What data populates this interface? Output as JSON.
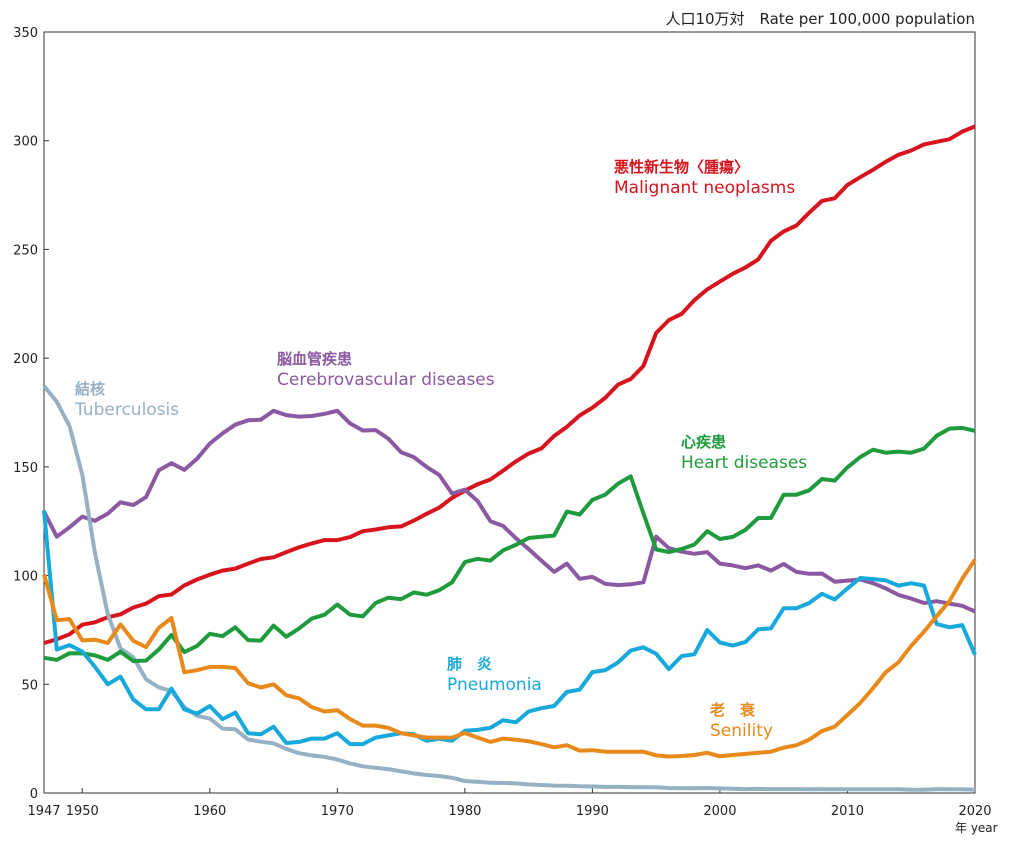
{
  "chart_data": {
    "type": "line",
    "y_label": "人口10万対　Rate per 100,000 population",
    "x_label": "年 year",
    "xlim": [
      1947,
      2020
    ],
    "xticks": [
      1947,
      1950,
      1960,
      1970,
      1980,
      1990,
      2000,
      2010,
      2020
    ],
    "ylim": [
      0,
      350
    ],
    "yticks": [
      0,
      50,
      100,
      150,
      200,
      250,
      300,
      350
    ],
    "x": [
      1947,
      1948,
      1949,
      1950,
      1951,
      1952,
      1953,
      1954,
      1955,
      1956,
      1957,
      1958,
      1959,
      1960,
      1961,
      1962,
      1963,
      1964,
      1965,
      1966,
      1967,
      1968,
      1969,
      1970,
      1971,
      1972,
      1973,
      1974,
      1975,
      1976,
      1977,
      1978,
      1979,
      1980,
      1981,
      1982,
      1983,
      1984,
      1985,
      1986,
      1987,
      1988,
      1989,
      1990,
      1991,
      1992,
      1993,
      1994,
      1995,
      1996,
      1997,
      1998,
      1999,
      2000,
      2001,
      2002,
      2003,
      2004,
      2005,
      2006,
      2007,
      2008,
      2009,
      2010,
      2011,
      2012,
      2013,
      2014,
      2015,
      2016,
      2017,
      2018,
      2019,
      2020
    ],
    "series": [
      {
        "name": "Malignant neoplasms",
        "name_ja": "悪性新生物〈腫瘍〉",
        "color": "#d7141e",
        "values": [
          69.0,
          70.7,
          73.0,
          77.4,
          78.5,
          80.8,
          82.2,
          85.3,
          87.1,
          90.5,
          91.3,
          95.5,
          98.2,
          100.4,
          102.3,
          103.2,
          105.5,
          107.6,
          108.4,
          110.8,
          113.0,
          114.8,
          116.3,
          116.3,
          117.7,
          120.4,
          121.2,
          122.2,
          122.6,
          125.3,
          128.4,
          131.3,
          135.7,
          139.1,
          142.0,
          144.2,
          148.3,
          152.5,
          156.1,
          158.5,
          164.2,
          168.4,
          173.6,
          177.2,
          181.7,
          187.8,
          190.4,
          196.4,
          211.6,
          217.5,
          220.4,
          226.7,
          231.6,
          235.2,
          238.8,
          241.7,
          245.4,
          253.9,
          258.3,
          261.0,
          266.9,
          272.3,
          273.5,
          279.7,
          283.2,
          286.6,
          290.3,
          293.5,
          295.5,
          298.3,
          299.5,
          300.7,
          304.2,
          306.6
        ]
      },
      {
        "name": "Cerebrovascular diseases",
        "name_ja": "脳血管疾患",
        "color": "#8b59a1",
        "values": [
          129.4,
          117.9,
          122.2,
          127.1,
          125.2,
          128.5,
          133.7,
          132.4,
          136.1,
          148.4,
          151.7,
          148.6,
          153.7,
          160.7,
          165.4,
          169.4,
          171.4,
          171.7,
          175.8,
          173.8,
          173.1,
          173.4,
          174.4,
          175.8,
          170.0,
          166.7,
          166.9,
          163.0,
          156.7,
          154.5,
          150.0,
          146.2,
          137.7,
          139.5,
          134.3,
          125.0,
          122.8,
          117.2,
          112.2,
          106.9,
          101.7,
          105.5,
          98.5,
          99.4,
          96.2,
          95.6,
          96.0,
          96.9,
          117.9,
          112.6,
          111.0,
          110.0,
          110.8,
          105.5,
          104.7,
          103.4,
          104.7,
          102.3,
          105.3,
          101.7,
          100.8,
          100.9,
          97.2,
          97.7,
          98.2,
          96.5,
          94.1,
          91.1,
          89.4,
          87.4,
          88.2,
          87.1,
          86.1,
          83.5
        ]
      },
      {
        "name": "Tuberculosis",
        "name_ja": "結核",
        "color": "#96b1c4",
        "values": [
          187.2,
          179.9,
          168.8,
          146.4,
          110.3,
          82.2,
          66.5,
          62.4,
          52.3,
          48.6,
          46.9,
          39.5,
          35.5,
          34.2,
          29.6,
          29.3,
          24.6,
          23.6,
          22.8,
          20.3,
          18.3,
          17.3,
          16.6,
          15.4,
          13.6,
          12.3,
          11.6,
          11.0,
          10.0,
          9.0,
          8.3,
          7.8,
          7.0,
          5.5,
          5.2,
          4.7,
          4.6,
          4.4,
          3.9,
          3.7,
          3.4,
          3.3,
          3.1,
          3.0,
          2.8,
          2.8,
          2.7,
          2.6,
          2.6,
          2.3,
          2.2,
          2.2,
          2.3,
          2.1,
          2.0,
          1.8,
          1.9,
          1.8,
          1.8,
          1.8,
          1.7,
          1.8,
          1.7,
          1.7,
          1.7,
          1.7,
          1.7,
          1.7,
          1.5,
          1.5,
          1.8,
          1.7,
          1.7,
          1.5
        ]
      },
      {
        "name": "Heart diseases",
        "name_ja": "心疾患",
        "color": "#1f9a3c",
        "values": [
          62.2,
          61.2,
          64.3,
          64.2,
          63.3,
          61.2,
          65.0,
          60.7,
          60.9,
          66.0,
          72.7,
          64.8,
          67.6,
          73.2,
          72.1,
          76.2,
          70.3,
          70.1,
          77.0,
          71.9,
          75.7,
          80.2,
          82.0,
          86.7,
          82.0,
          81.2,
          87.4,
          89.8,
          89.2,
          92.2,
          91.2,
          93.3,
          96.9,
          106.2,
          107.7,
          106.9,
          111.6,
          114.1,
          117.3,
          117.9,
          118.4,
          129.4,
          128.1,
          134.8,
          137.2,
          142.2,
          145.6,
          128.6,
          112.0,
          110.8,
          112.2,
          114.3,
          120.4,
          116.8,
          117.8,
          121.0,
          126.5,
          126.5,
          137.2,
          137.2,
          139.2,
          144.4,
          143.7,
          149.8,
          154.5,
          157.9,
          156.5,
          157.0,
          156.5,
          158.4,
          164.3,
          167.6,
          167.9,
          166.6
        ]
      },
      {
        "name": "Pneumonia",
        "name_ja": "肺　炎",
        "color": "#18a9dc",
        "values": [
          130,
          66,
          68,
          65.1,
          58,
          50,
          53.5,
          43,
          38.5,
          38.5,
          48,
          38.5,
          36.5,
          40,
          34,
          37,
          27.5,
          27,
          30.5,
          23,
          23.5,
          25,
          25,
          27.5,
          22.5,
          22.5,
          25.5,
          26.5,
          27.5,
          27,
          24,
          25,
          24,
          28.6,
          29,
          30,
          33.5,
          32.5,
          37.5,
          39,
          40,
          46.5,
          47.5,
          55.6,
          56.5,
          60,
          65.5,
          67,
          64,
          57,
          63,
          63.8,
          74.9,
          69.2,
          67.8,
          69.4,
          75.3,
          75.7,
          85.0,
          85.0,
          87.4,
          91.6,
          89.0,
          94.1,
          98.9,
          98.4,
          97.8,
          95.4,
          96.5,
          95.4,
          77.7,
          76.2,
          77.2,
          63.6
        ]
      },
      {
        "name": "Senility",
        "name_ja": "老　衰",
        "color": "#e8891b",
        "values": [
          100.5,
          79.5,
          80,
          70.2,
          70.5,
          69,
          77.5,
          70,
          67.1,
          76,
          80.5,
          55.5,
          56.5,
          58,
          58,
          57.5,
          50.5,
          48.5,
          50,
          45,
          43.5,
          39.5,
          37.5,
          38.1,
          34,
          31,
          31,
          30,
          27.5,
          26.5,
          25.5,
          25.5,
          25.5,
          27.6,
          25.5,
          23.5,
          25,
          24.5,
          23.8,
          22.5,
          21,
          22,
          19.5,
          19.7,
          19,
          19,
          19,
          19,
          17.3,
          16.8,
          17,
          17.5,
          18.5,
          16.9,
          17.5,
          18,
          18.5,
          19,
          20.9,
          22,
          24.5,
          28.5,
          30.5,
          35.9,
          41.4,
          48.2,
          55.5,
          60.1,
          67.7,
          74.2,
          81.3,
          88.2,
          98.5,
          107.3
        ]
      }
    ]
  }
}
